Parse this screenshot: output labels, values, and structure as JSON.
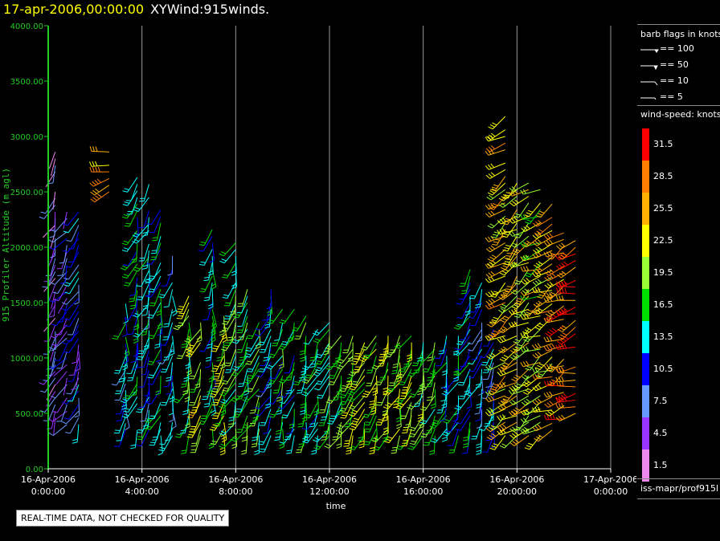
{
  "header": {
    "timestamp": "17-apr-2006,00:00:00",
    "name": "XYWind:915winds."
  },
  "notice": "REAL-TIME DATA, NOT CHECKED FOR QUALITY",
  "legend": {
    "flags_title": "barb flags in knots",
    "flags": [
      "== 100",
      "== 50",
      "== 10",
      "== 5"
    ],
    "colorbar_title": "wind-speed: knots",
    "colorbar": [
      {
        "label": "31.5",
        "color": "#ff0000"
      },
      {
        "label": "28.5",
        "color": "#ff8000"
      },
      {
        "label": "25.5",
        "color": "#ffb000"
      },
      {
        "label": "22.5",
        "color": "#ffff00"
      },
      {
        "label": "19.5",
        "color": "#99ff33"
      },
      {
        "label": "16.5",
        "color": "#00dd00"
      },
      {
        "label": "13.5",
        "color": "#00ffff"
      },
      {
        "label": "10.5",
        "color": "#0000ff"
      },
      {
        "label": "7.5",
        "color": "#6699ff"
      },
      {
        "label": "4.5",
        "color": "#9933ff"
      },
      {
        "label": "1.5",
        "color": "#ee88ee"
      }
    ],
    "source": "iss-mapr/prof915l"
  },
  "chart_data": {
    "type": "scatter",
    "title": "XYWind:915winds.",
    "ylabel": "915 Profiler Altitude (m agl)",
    "xlabel": "time",
    "ylim": [
      0,
      4000
    ],
    "yticks": [
      "0.00",
      "500.00",
      "1000.00",
      "1500.00",
      "2000.00",
      "2500.00",
      "3000.00",
      "3500.00",
      "4000.00"
    ],
    "xticks": [
      {
        "date": "16-Apr-2006",
        "time": "0:00:00"
      },
      {
        "date": "16-Apr-2006",
        "time": "4:00:00"
      },
      {
        "date": "16-Apr-2006",
        "time": "8:00:00"
      },
      {
        "date": "16-Apr-2006",
        "time": "12:00:00"
      },
      {
        "date": "16-Apr-2006",
        "time": "16:00:00"
      },
      {
        "date": "16-Apr-2006",
        "time": "20:00:00"
      },
      {
        "date": "17-Apr-2006",
        "time": "0:00:00"
      }
    ],
    "xlim_hours": [
      0,
      24
    ],
    "grid": "vertical",
    "colors": {
      "axis": "#22cc22",
      "grid": "#999999",
      "ytick_text": "#22cc22"
    },
    "columns": [
      {
        "hour": 0.3,
        "alt_min": 400,
        "alt_max": 2950,
        "wdir": 200,
        "speed": 5
      },
      {
        "hour": 0.8,
        "alt_min": 400,
        "alt_max": 2600,
        "wdir": 210,
        "speed": 7
      },
      {
        "hour": 1.3,
        "alt_min": 400,
        "alt_max": 2400,
        "wdir": 200,
        "speed": 9
      },
      {
        "hour": 2.6,
        "alt_min": 2500,
        "alt_max": 2900,
        "wdir": 260,
        "speed": 26
      },
      {
        "hour": 3.3,
        "alt_min": 350,
        "alt_max": 1500,
        "wdir": 190,
        "speed": 12
      },
      {
        "hour": 3.8,
        "alt_min": 350,
        "alt_max": 2650,
        "wdir": 200,
        "speed": 13
      },
      {
        "hour": 4.3,
        "alt_min": 350,
        "alt_max": 2600,
        "wdir": 200,
        "speed": 12
      },
      {
        "hour": 4.8,
        "alt_min": 300,
        "alt_max": 2450,
        "wdir": 195,
        "speed": 14
      },
      {
        "hour": 5.3,
        "alt_min": 300,
        "alt_max": 1950,
        "wdir": 190,
        "speed": 11
      },
      {
        "hour": 6.0,
        "alt_min": 300,
        "alt_max": 1600,
        "wdir": 195,
        "speed": 18
      },
      {
        "hour": 6.5,
        "alt_min": 300,
        "alt_max": 1450,
        "wdir": 200,
        "speed": 21
      },
      {
        "hour": 7.0,
        "alt_min": 300,
        "alt_max": 2250,
        "wdir": 190,
        "speed": 14
      },
      {
        "hour": 7.5,
        "alt_min": 300,
        "alt_max": 1450,
        "wdir": 195,
        "speed": 20
      },
      {
        "hour": 8.0,
        "alt_min": 300,
        "alt_max": 2050,
        "wdir": 200,
        "speed": 17
      },
      {
        "hour": 8.5,
        "alt_min": 300,
        "alt_max": 1650,
        "wdir": 200,
        "speed": 16
      },
      {
        "hour": 9.0,
        "alt_min": 300,
        "alt_max": 1400,
        "wdir": 200,
        "speed": 17
      },
      {
        "hour": 9.5,
        "alt_min": 300,
        "alt_max": 1650,
        "wdir": 200,
        "speed": 12
      },
      {
        "hour": 10.0,
        "alt_min": 300,
        "alt_max": 1500,
        "wdir": 200,
        "speed": 15
      },
      {
        "hour": 10.5,
        "alt_min": 300,
        "alt_max": 1450,
        "wdir": 200,
        "speed": 14
      },
      {
        "hour": 11.0,
        "alt_min": 300,
        "alt_max": 1400,
        "wdir": 200,
        "speed": 16
      },
      {
        "hour": 11.5,
        "alt_min": 300,
        "alt_max": 1300,
        "wdir": 200,
        "speed": 15
      },
      {
        "hour": 12.0,
        "alt_min": 300,
        "alt_max": 1350,
        "wdir": 200,
        "speed": 16
      },
      {
        "hour": 12.5,
        "alt_min": 300,
        "alt_max": 1250,
        "wdir": 200,
        "speed": 17
      },
      {
        "hour": 13.0,
        "alt_min": 300,
        "alt_max": 1250,
        "wdir": 200,
        "speed": 19
      },
      {
        "hour": 13.5,
        "alt_min": 300,
        "alt_max": 1250,
        "wdir": 200,
        "speed": 20
      },
      {
        "hour": 14.0,
        "alt_min": 300,
        "alt_max": 1200,
        "wdir": 200,
        "speed": 20
      },
      {
        "hour": 14.5,
        "alt_min": 300,
        "alt_max": 1200,
        "wdir": 200,
        "speed": 20
      },
      {
        "hour": 15.0,
        "alt_min": 300,
        "alt_max": 1200,
        "wdir": 200,
        "speed": 20
      },
      {
        "hour": 15.5,
        "alt_min": 300,
        "alt_max": 1200,
        "wdir": 200,
        "speed": 19
      },
      {
        "hour": 16.0,
        "alt_min": 300,
        "alt_max": 1150,
        "wdir": 200,
        "speed": 18
      },
      {
        "hour": 16.5,
        "alt_min": 300,
        "alt_max": 1150,
        "wdir": 200,
        "speed": 17
      },
      {
        "hour": 17.0,
        "alt_min": 300,
        "alt_max": 1250,
        "wdir": 200,
        "speed": 15
      },
      {
        "hour": 17.5,
        "alt_min": 300,
        "alt_max": 1250,
        "wdir": 200,
        "speed": 14
      },
      {
        "hour": 18.0,
        "alt_min": 300,
        "alt_max": 1800,
        "wdir": 200,
        "speed": 13
      },
      {
        "hour": 18.5,
        "alt_min": 300,
        "alt_max": 1700,
        "wdir": 200,
        "speed": 11
      },
      {
        "hour": 19.0,
        "alt_min": 300,
        "alt_max": 1400,
        "wdir": 200,
        "speed": 10
      },
      {
        "hour": 19.5,
        "alt_min": 300,
        "alt_max": 3200,
        "wdir": 230,
        "speed": 24
      },
      {
        "hour": 20.0,
        "alt_min": 300,
        "alt_max": 2600,
        "wdir": 230,
        "speed": 23
      },
      {
        "hour": 20.5,
        "alt_min": 300,
        "alt_max": 2600,
        "wdir": 235,
        "speed": 22
      },
      {
        "hour": 21.0,
        "alt_min": 300,
        "alt_max": 2550,
        "wdir": 240,
        "speed": 21
      },
      {
        "hour": 21.5,
        "alt_min": 350,
        "alt_max": 2400,
        "wdir": 240,
        "speed": 24
      },
      {
        "hour": 22.0,
        "alt_min": 450,
        "alt_max": 2200,
        "wdir": 245,
        "speed": 27
      },
      {
        "hour": 22.5,
        "alt_min": 500,
        "alt_max": 2100,
        "wdir": 250,
        "speed": 29
      }
    ]
  }
}
